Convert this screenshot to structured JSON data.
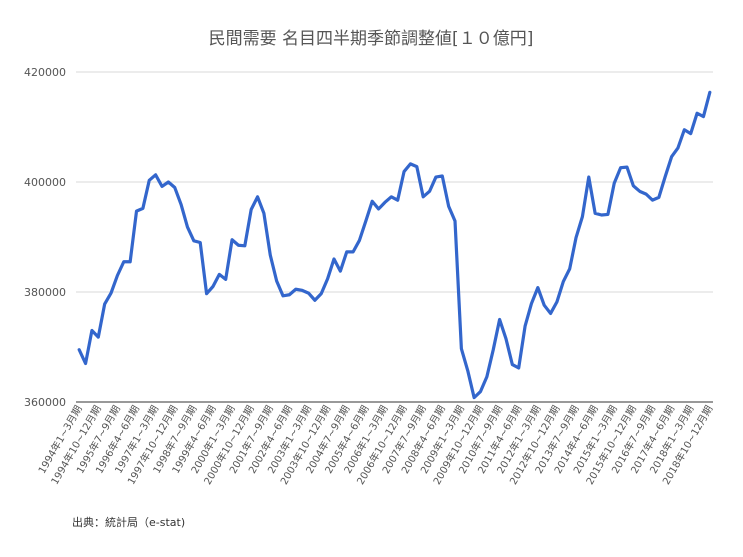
{
  "chart_data": {
    "type": "line",
    "title": "民間需要 名目四半期季節調整値[１０億円]",
    "xlabel": "",
    "ylabel": "",
    "ylim": [
      360000,
      420000
    ],
    "yticks": [
      "360000",
      "380000",
      "400000",
      "420000"
    ],
    "grid": "horizontal",
    "legend": "none",
    "color": "#3366CC",
    "categories": [
      "1994年1~3月期",
      "1994年4~6月期",
      "1994年7~9月期",
      "1994年10~12月期",
      "1995年1~3月期",
      "1995年4~6月期",
      "1995年7~9月期",
      "1995年10~12月期",
      "1996年1~3月期",
      "1996年4~6月期",
      "1996年7~9月期",
      "1996年10~12月期",
      "1997年1~3月期",
      "1997年4~6月期",
      "1997年7~9月期",
      "1997年10~12月期",
      "1998年1~3月期",
      "1998年4~6月期",
      "1998年7~9月期",
      "1998年10~12月期",
      "1999年1~3月期",
      "1999年4~6月期",
      "1999年7~9月期",
      "1999年10~12月期",
      "2000年1~3月期",
      "2000年4~6月期",
      "2000年7~9月期",
      "2000年10~12月期",
      "2001年1~3月期",
      "2001年4~6月期",
      "2001年7~9月期",
      "2001年10~12月期",
      "2002年1~3月期",
      "2002年4~6月期",
      "2002年7~9月期",
      "2002年10~12月期",
      "2003年1~3月期",
      "2003年4~6月期",
      "2003年7~9月期",
      "2003年10~12月期",
      "2004年1~3月期",
      "2004年4~6月期",
      "2004年7~9月期",
      "2004年10~12月期",
      "2005年1~3月期",
      "2005年4~6月期",
      "2005年7~9月期",
      "2005年10~12月期",
      "2006年1~3月期",
      "2006年4~6月期",
      "2006年7~9月期",
      "2006年10~12月期",
      "2007年1~3月期",
      "2007年4~6月期",
      "2007年7~9月期",
      "2007年10~12月期",
      "2008年1~3月期",
      "2008年4~6月期",
      "2008年7~9月期",
      "2008年10~12月期",
      "2009年1~3月期",
      "2009年4~6月期",
      "2009年7~9月期",
      "2009年10~12月期",
      "2010年1~3月期",
      "2010年4~6月期",
      "2010年7~9月期",
      "2010年10~12月期",
      "2011年1~3月期",
      "2011年4~6月期",
      "2011年7~9月期",
      "2011年10~12月期",
      "2012年1~3月期",
      "2012年4~6月期",
      "2012年7~9月期",
      "2012年10~12月期",
      "2013年1~3月期",
      "2013年4~6月期",
      "2013年7~9月期",
      "2013年10~12月期",
      "2014年1~3月期",
      "2014年4~6月期",
      "2014年7~9月期",
      "2014年10~12月期",
      "2015年1~3月期",
      "2015年4~6月期",
      "2015年7~9月期",
      "2015年10~12月期",
      "2016年1~3月期",
      "2016年4~6月期",
      "2016年7~9月期",
      "2016年10~12月期",
      "2017年1~3月期",
      "2017年4~6月期",
      "2017年7~9月期",
      "2017年10~12月期",
      "2018年1~3月期",
      "2018年4~6月期",
      "2018年7~9月期",
      "2018年10~12月期"
    ],
    "x_tick_labels": [
      "1994年1~3月期",
      "1994年10~12月期",
      "1995年7~9月期",
      "1996年4~6月期",
      "1997年1~3月期",
      "1997年10~12月期",
      "1998年7~9月期",
      "1999年4~6月期",
      "2000年1~3月期",
      "2000年10~12月期",
      "2001年7~9月期",
      "2002年4~6月期",
      "2003年1~3月期",
      "2003年10~12月期",
      "2004年7~9月期",
      "2005年4~6月期",
      "2006年1~3月期",
      "2006年10~12月期",
      "2007年7~9月期",
      "2008年4~6月期",
      "2009年1~3月期",
      "2009年10~12月期",
      "2010年7~9月期",
      "2011年4~6月期",
      "2012年1~3月期",
      "2012年10~12月期",
      "2013年7~9月期",
      "2014年4~6月期",
      "2015年1~3月期",
      "2015年10~12月期",
      "2016年7~9月期",
      "2017年4~6月期",
      "2018年1~3月期",
      "2018年10~12月期"
    ],
    "values": [
      369500,
      367000,
      373000,
      371800,
      377800,
      379800,
      383000,
      385500,
      385500,
      394700,
      395200,
      400300,
      401300,
      399200,
      400000,
      399000,
      395900,
      391800,
      389300,
      389000,
      379700,
      381000,
      383200,
      382300,
      389500,
      388500,
      388400,
      395000,
      397300,
      394300,
      386700,
      382000,
      379300,
      379500,
      380500,
      380300,
      379800,
      378500,
      379700,
      382400,
      386000,
      383800,
      387300,
      387300,
      389400,
      392900,
      396500,
      395100,
      396300,
      397300,
      396700,
      401900,
      403300,
      402800,
      397300,
      398300,
      400900,
      401100,
      395600,
      392900,
      369700,
      365700,
      360800,
      361900,
      364600,
      369500,
      375000,
      371500,
      366800,
      366200,
      373800,
      377900,
      380800,
      377600,
      376100,
      378200,
      381900,
      384200,
      389900,
      393700,
      400900,
      394300,
      394000,
      394100,
      399800,
      402600,
      402700,
      399300,
      398300,
      397800,
      396700,
      397200,
      401000,
      404600,
      406200,
      409500,
      408800,
      412500,
      411900,
      416300
    ]
  },
  "source_text": "出典：統計局（e-stat)"
}
